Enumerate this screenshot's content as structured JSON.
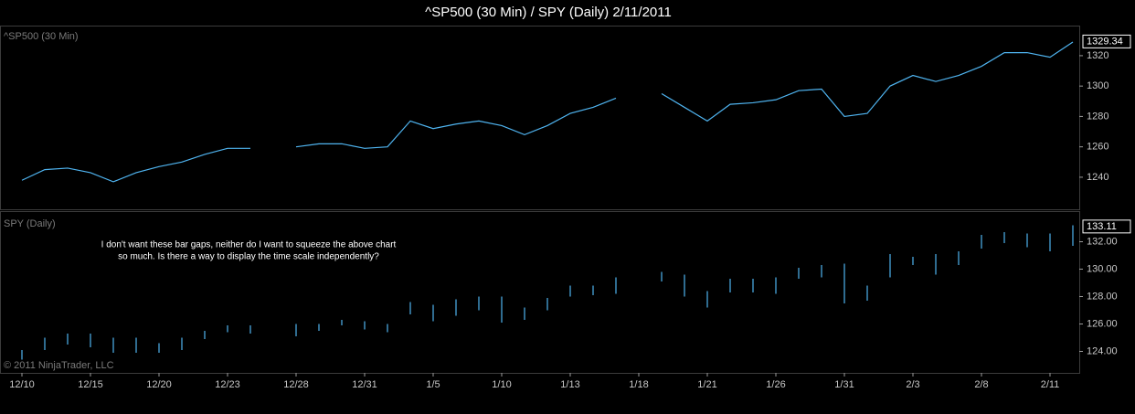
{
  "title": "^SP500 (30 Min) / SPY (Daily)  2/11/2011",
  "copyright": "© 2011 NinjaTrader, LLC",
  "chart_data": [
    {
      "type": "line",
      "label": "^SP500 (30 Min)",
      "color": "#4fb4f0",
      "values": [
        1238,
        1245,
        1246,
        1243,
        1237,
        1243,
        1247,
        1250,
        1255,
        1259,
        1259,
        null,
        1260,
        1262,
        1262,
        1259,
        1260,
        1277,
        1272,
        1275,
        1277,
        1274,
        1268,
        1274,
        1282,
        1286,
        1292,
        null,
        1295,
        1286,
        1277,
        1288,
        1289,
        1291,
        1297,
        1298,
        1280,
        1282,
        1300,
        1307,
        1303,
        1307,
        1313,
        1322,
        1322,
        1319,
        1329
      ],
      "last_value": 1329.34,
      "ylim": [
        1219.5,
        1338.6
      ],
      "yticks": [
        1240,
        1260,
        1280,
        1300,
        1320
      ]
    },
    {
      "type": "range",
      "label": "SPY (Daily)",
      "color": "#4fb4f0",
      "categories": [
        "12/10",
        null,
        null,
        "12/15",
        null,
        null,
        "12/20",
        null,
        null,
        "12/23",
        null,
        null,
        "12/28",
        null,
        null,
        "12/31",
        null,
        null,
        "1/5",
        null,
        null,
        "1/10",
        null,
        null,
        "1/13",
        null,
        null,
        "1/18",
        null,
        null,
        "1/21",
        null,
        null,
        "1/26",
        null,
        null,
        "1/31",
        null,
        null,
        "2/3",
        null,
        null,
        "2/8",
        null,
        null,
        "2/11",
        null
      ],
      "high": [
        124.1,
        125.0,
        125.3,
        125.3,
        125.0,
        125.0,
        124.6,
        125.0,
        125.5,
        125.9,
        125.9,
        null,
        126.0,
        126.0,
        126.3,
        126.2,
        126.0,
        127.6,
        127.4,
        127.8,
        128.0,
        128.0,
        127.2,
        127.9,
        128.8,
        128.8,
        129.4,
        null,
        129.8,
        129.6,
        128.4,
        129.3,
        129.3,
        129.4,
        130.1,
        130.3,
        130.4,
        128.8,
        131.1,
        130.9,
        131.1,
        131.3,
        132.5,
        132.7,
        132.6,
        132.6,
        133.2
      ],
      "low": [
        123.4,
        124.1,
        124.5,
        124.3,
        123.9,
        123.9,
        123.9,
        124.1,
        124.9,
        125.4,
        125.3,
        null,
        125.1,
        125.5,
        125.9,
        125.6,
        125.4,
        126.7,
        126.2,
        126.6,
        127.0,
        126.1,
        126.3,
        127.0,
        128.0,
        128.1,
        128.2,
        null,
        129.1,
        128.0,
        127.2,
        128.3,
        128.3,
        128.2,
        129.3,
        129.4,
        127.5,
        127.7,
        129.4,
        130.3,
        129.6,
        130.3,
        131.5,
        131.9,
        131.6,
        131.3,
        131.7
      ],
      "last_value": 133.11,
      "ylim": [
        122.5,
        134.1
      ],
      "yticks": [
        124.0,
        126.0,
        128.0,
        130.0,
        132.0
      ],
      "ytick_labels": [
        "124.00",
        "126.00",
        "128.00",
        "130.00",
        "132.00"
      ],
      "annotation": [
        "I don't want these bar gaps, neither do I want to squeeze the above chart",
        "so much. Is there a way to display the time scale independently?"
      ]
    }
  ]
}
